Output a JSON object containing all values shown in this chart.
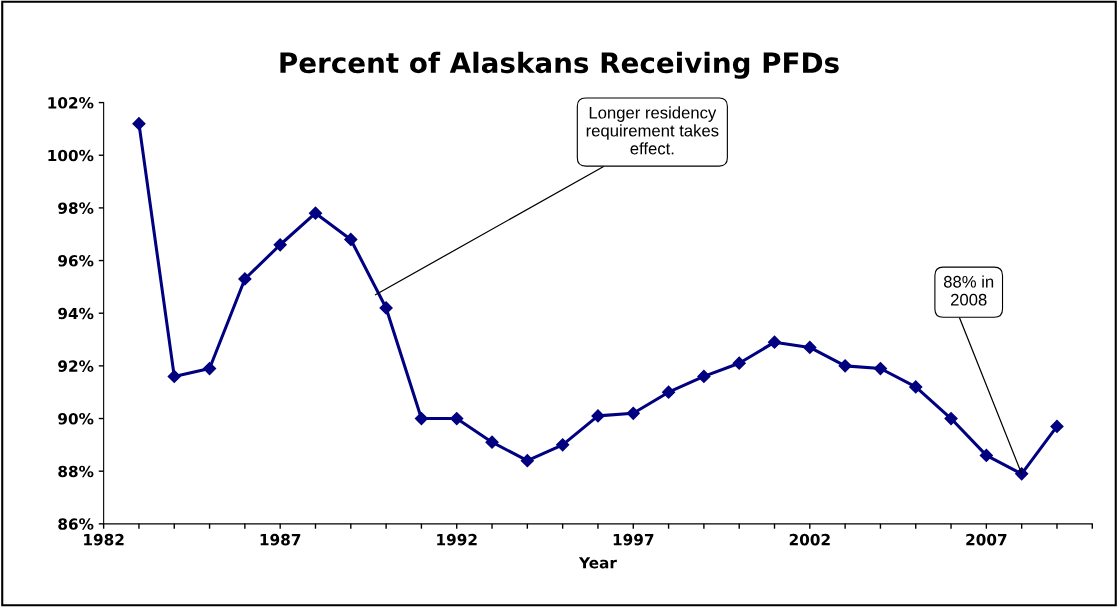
{
  "chart_data": {
    "type": "line",
    "title": "Percent of Alaskans Receiving PFDs",
    "xlabel": "Year",
    "x": [
      1983,
      1984,
      1985,
      1986,
      1987,
      1988,
      1989,
      1990,
      1991,
      1992,
      1993,
      1994,
      1995,
      1996,
      1997,
      1998,
      1999,
      2000,
      2001,
      2002,
      2003,
      2004,
      2005,
      2006,
      2007,
      2008,
      2009
    ],
    "series": [
      {
        "color": "#000080",
        "values": [
          101.2,
          91.6,
          91.9,
          95.3,
          96.6,
          97.8,
          96.8,
          94.2,
          90.0,
          90.0,
          89.1,
          88.4,
          89.0,
          90.1,
          90.2,
          91.0,
          91.6,
          92.1,
          92.9,
          92.7,
          92.0,
          91.9,
          91.2,
          90.0,
          88.6,
          87.9,
          89.7
        ]
      }
    ],
    "xlim": [
      1982,
      2010
    ],
    "xticks": [
      1982,
      {
        "value": 1983,
        "label": null
      },
      {
        "value": 1984,
        "label": null
      },
      {
        "value": 1985,
        "label": null
      },
      {
        "value": 1986,
        "label": null
      },
      1987,
      {
        "value": 1988,
        "label": null
      },
      {
        "value": 1989,
        "label": null
      },
      {
        "value": 1990,
        "label": null
      },
      {
        "value": 1991,
        "label": null
      },
      1992,
      {
        "value": 1993,
        "label": null
      },
      {
        "value": 1994,
        "label": null
      },
      {
        "value": 1995,
        "label": null
      },
      {
        "value": 1996,
        "label": null
      },
      1997,
      {
        "value": 1998,
        "label": null
      },
      {
        "value": 1999,
        "label": null
      },
      {
        "value": 2000,
        "label": null
      },
      {
        "value": 2001,
        "label": null
      },
      2002,
      {
        "value": 2003,
        "label": null
      },
      {
        "value": 2004,
        "label": null
      },
      {
        "value": 2005,
        "label": null
      },
      {
        "value": 2006,
        "label": null
      },
      2007,
      {
        "value": 2008,
        "label": null
      },
      {
        "value": 2009,
        "label": null
      },
      {
        "value": 2010,
        "label": null
      }
    ],
    "ylim": [
      86,
      102
    ],
    "yticks": [
      {
        "value": 86,
        "label": "86%"
      },
      {
        "value": 88,
        "label": "88%"
      },
      {
        "value": 90,
        "label": "90%"
      },
      {
        "value": 92,
        "label": "92%"
      },
      {
        "value": 94,
        "label": "94%"
      },
      {
        "value": 96,
        "label": "96%"
      },
      {
        "value": 98,
        "label": "98%"
      },
      {
        "value": 100,
        "label": "100%"
      },
      {
        "value": 102,
        "label": "102%"
      }
    ],
    "annotations": [
      {
        "text": "Longer residency\nrequirement takes\neffect.",
        "x": 1989.7,
        "y": 94.7
      },
      {
        "text": "88% in\n2008",
        "x": 2008,
        "y": 87.9
      }
    ],
    "grid": false,
    "legend": false,
    "marker": "diamond",
    "line_style": "solid"
  }
}
